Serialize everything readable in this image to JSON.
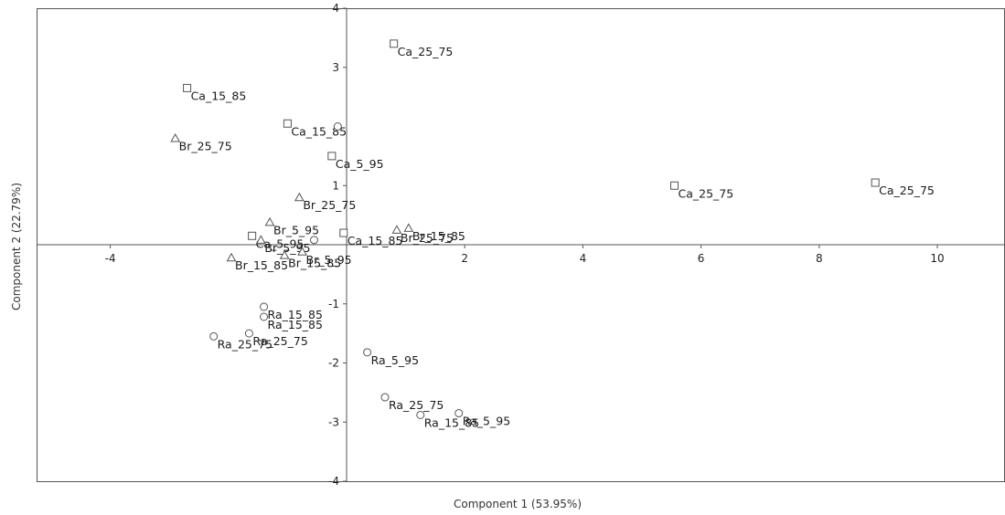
{
  "chart_data": {
    "type": "scatter",
    "title": "",
    "xlabel": "Component 1 (53.95%)",
    "ylabel": "Component 2 (22.79%)",
    "xlim": [
      -5.2,
      11.2
    ],
    "ylim": [
      -4,
      4
    ],
    "x_ticks": [
      -4,
      2,
      4,
      6,
      8,
      10
    ],
    "y_ticks": [
      4,
      3,
      1,
      -1,
      -2,
      -3,
      -4
    ],
    "grid": false,
    "legend": "none",
    "series": [
      {
        "marker": "square",
        "points": [
          {
            "x": 0.8,
            "y": 3.4,
            "label": "Ca_25_75"
          },
          {
            "x": -2.7,
            "y": 2.65,
            "label": "Ca_15_85"
          },
          {
            "x": -1.0,
            "y": 2.05,
            "label": "Ca_15_85"
          },
          {
            "x": -0.25,
            "y": 1.5,
            "label": "Ca_5_95"
          },
          {
            "x": 5.55,
            "y": 1.0,
            "label": "Ca_25_75"
          },
          {
            "x": 8.95,
            "y": 1.05,
            "label": "Ca_25_75"
          },
          {
            "x": -1.6,
            "y": 0.15,
            "label": "Ca_5_95"
          },
          {
            "x": -0.05,
            "y": 0.2,
            "label": "Ca_15_85"
          }
        ]
      },
      {
        "marker": "triangle",
        "points": [
          {
            "x": -2.9,
            "y": 1.8,
            "label": "Br_25_75"
          },
          {
            "x": -0.8,
            "y": 0.8,
            "label": "Br_25_75"
          },
          {
            "x": -1.3,
            "y": 0.38,
            "label": "Br_5_95"
          },
          {
            "x": -1.45,
            "y": 0.08,
            "label": "Br_5_95"
          },
          {
            "x": 0.85,
            "y": 0.25,
            "label": "Br_25_75"
          },
          {
            "x": 1.05,
            "y": 0.28,
            "label": "Br_15_85"
          },
          {
            "x": -1.95,
            "y": -0.22,
            "label": "Br_15_85"
          },
          {
            "x": -1.05,
            "y": -0.18,
            "label": "Br_15_85"
          },
          {
            "x": -0.75,
            "y": -0.12,
            "label": "Br_5_95"
          }
        ]
      },
      {
        "marker": "circle",
        "points": [
          {
            "x": -0.15,
            "y": 2.0,
            "label": ""
          },
          {
            "x": -0.55,
            "y": 0.08,
            "label": ""
          },
          {
            "x": -1.4,
            "y": -1.05,
            "label": "Ra_15_85"
          },
          {
            "x": -1.4,
            "y": -1.22,
            "label": "Ra_15_85"
          },
          {
            "x": -2.25,
            "y": -1.55,
            "label": "Ra_25_75"
          },
          {
            "x": -1.65,
            "y": -1.5,
            "label": "Ra_25_75"
          },
          {
            "x": 0.35,
            "y": -1.82,
            "label": "Ra_5_95"
          },
          {
            "x": 0.65,
            "y": -2.58,
            "label": "Ra_25_75"
          },
          {
            "x": 1.25,
            "y": -2.88,
            "label": "Ra_15_85"
          },
          {
            "x": 1.9,
            "y": -2.85,
            "label": "Ra_5_95"
          }
        ]
      }
    ]
  }
}
